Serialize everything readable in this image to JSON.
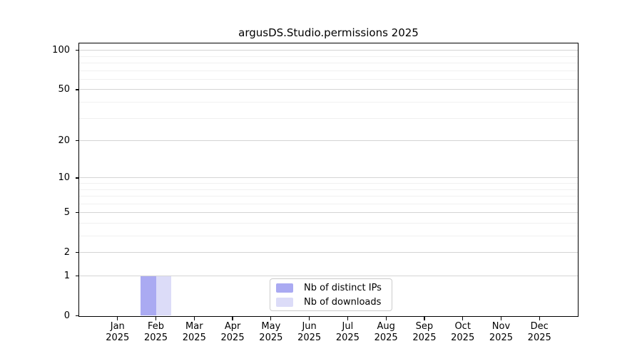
{
  "title": "argusDS.Studio.permissions 2025",
  "chart_data": {
    "type": "bar",
    "title": "argusDS.Studio.permissions 2025",
    "categories": [
      "Jan 2025",
      "Feb 2025",
      "Mar 2025",
      "Apr 2025",
      "May 2025",
      "Jun 2025",
      "Jul 2025",
      "Aug 2025",
      "Sep 2025",
      "Oct 2025",
      "Nov 2025",
      "Dec 2025"
    ],
    "series": [
      {
        "name": "Nb of distinct IPs",
        "color": "#aaaaf2",
        "values": [
          0,
          1,
          0,
          0,
          0,
          0,
          0,
          0,
          0,
          0,
          0,
          0
        ]
      },
      {
        "name": "Nb of downloads",
        "color": "#dcdcf8",
        "values": [
          0,
          1,
          0,
          0,
          0,
          0,
          0,
          0,
          0,
          0,
          0,
          0
        ]
      }
    ],
    "yscale": "log1p",
    "ylim": [
      0,
      113
    ],
    "yticks": [
      0,
      1,
      2,
      5,
      10,
      20,
      50,
      100
    ],
    "yticks_minor": [
      3,
      4,
      6,
      7,
      8,
      9,
      30,
      40,
      60,
      70,
      80,
      90
    ],
    "grid": "horizontal",
    "legend_position": "lower center"
  },
  "colors": {
    "background": "#ffffff",
    "axis": "#000000",
    "grid_major": "#d4d4d4",
    "grid_minor": "#f0f0f0",
    "bar_ips": "#aaaaf2",
    "bar_downloads": "#dcdcf8",
    "legend_border": "#cccccc",
    "text": "#000000"
  }
}
